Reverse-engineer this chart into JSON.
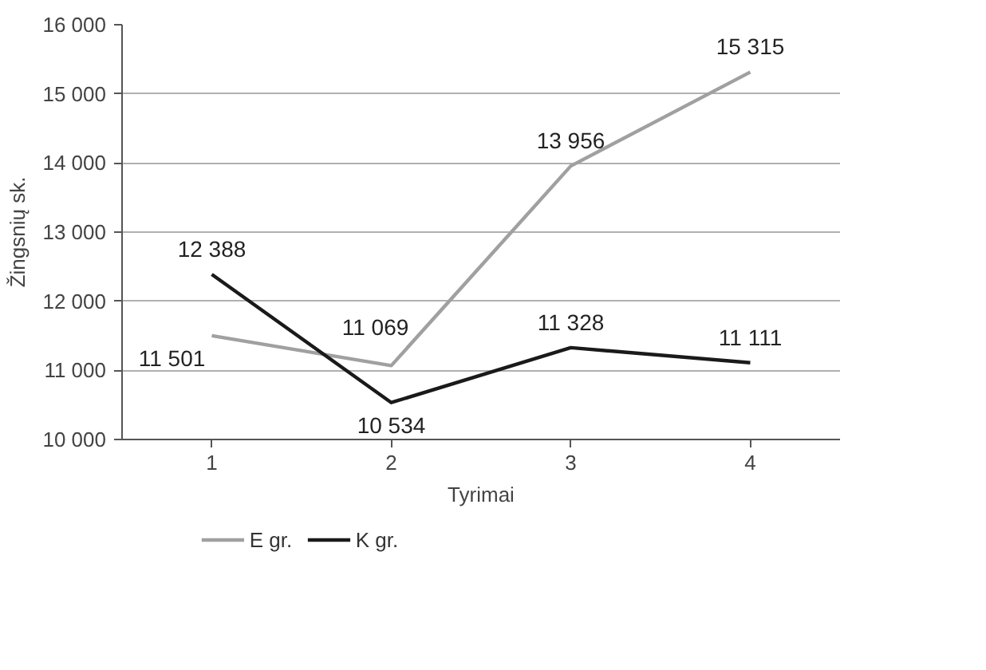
{
  "chart_data": {
    "type": "line",
    "xlabel": "Tyrimai",
    "ylabel": "Žingsnių sk.",
    "categories": [
      "1",
      "2",
      "3",
      "4"
    ],
    "series": [
      {
        "name": "E gr.",
        "color": "#a0a0a0",
        "values": [
          11501,
          11069,
          13956,
          15315
        ],
        "value_labels": [
          "11 501",
          "11 069",
          "13 956",
          "15 315"
        ]
      },
      {
        "name": "K gr.",
        "color": "#1a1a1a",
        "values": [
          12388,
          10534,
          11328,
          11111
        ],
        "value_labels": [
          "12 388",
          "10 534",
          "11 328",
          "11 111"
        ]
      }
    ],
    "ylim": [
      10000,
      16000
    ],
    "yticks": [
      {
        "value": 10000,
        "label": "10 000"
      },
      {
        "value": 11000,
        "label": "11 000"
      },
      {
        "value": 12000,
        "label": "12 000"
      },
      {
        "value": 13000,
        "label": "13 000"
      },
      {
        "value": 14000,
        "label": "14 000"
      },
      {
        "value": 15000,
        "label": "15 000"
      },
      {
        "value": 16000,
        "label": "16 000"
      }
    ],
    "grid": "y",
    "legend": "bottom",
    "marker": "none",
    "line_style": "solid"
  }
}
